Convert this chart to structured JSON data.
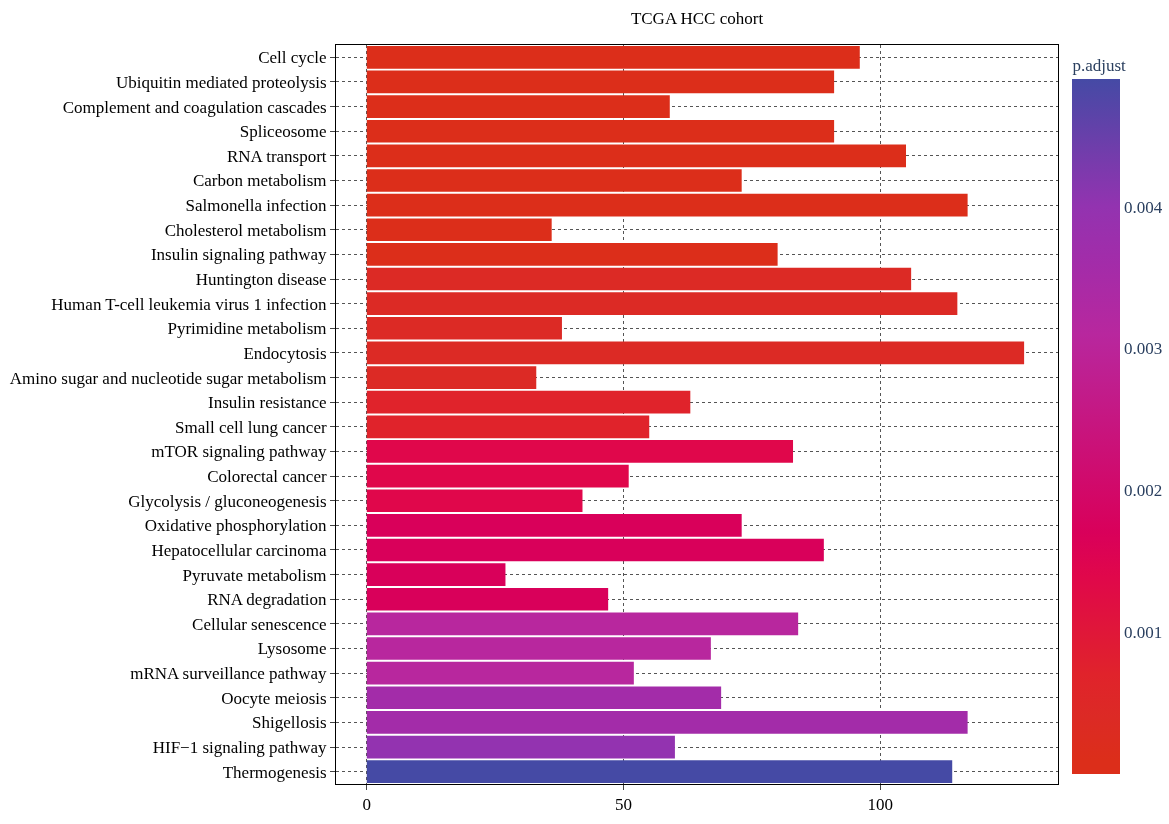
{
  "chart_data": {
    "type": "bar",
    "orientation": "horizontal",
    "title": "TCGA HCC cohort",
    "clabel": "p.adjust",
    "categories": [
      "Cell cycle",
      "Ubiquitin mediated proteolysis",
      "Complement and coagulation cascades",
      "Spliceosome",
      "RNA transport",
      "Carbon metabolism",
      "Salmonella infection",
      "Cholesterol metabolism",
      "Insulin signaling pathway",
      "Huntington disease",
      "Human T-cell leukemia virus 1 infection",
      "Pyrimidine metabolism",
      "Endocytosis",
      "Amino sugar and nucleotide sugar metabolism",
      "Insulin resistance",
      "Small cell lung cancer",
      "mTOR signaling pathway",
      "Colorectal cancer",
      "Glycolysis / gluconeogenesis",
      "Oxidative phosphorylation",
      "Hepatocellular carcinoma",
      "Pyruvate metabolism",
      "RNA degradation",
      "Cellular senescence",
      "Lysosome",
      "mRNA surveillance pathway",
      "Oocyte meiosis",
      "Shigellosis",
      "HIF−1 signaling pathway",
      "Thermogenesis"
    ],
    "values": [
      96,
      91,
      59,
      91,
      105,
      73,
      117,
      36,
      80,
      106,
      115,
      38,
      128,
      33,
      63,
      55,
      83,
      51,
      42,
      73,
      89,
      27,
      47,
      84,
      67,
      52,
      69,
      117,
      60,
      114
    ],
    "cvalues": [
      0.0001,
      0.0001,
      0.0001,
      0.0001,
      0.0001,
      0.0001,
      0.0001,
      0.0001,
      0.0001,
      0.0004,
      0.0004,
      0.0004,
      0.0004,
      0.0004,
      0.0007,
      0.0007,
      0.0014,
      0.0014,
      0.0014,
      0.0017,
      0.0017,
      0.0017,
      0.0017,
      0.0031,
      0.0031,
      0.0031,
      0.0036,
      0.0036,
      0.004,
      0.0049
    ],
    "colors": [
      "#dc2e1a",
      "#dc2e1a",
      "#dc2e1a",
      "#dc2e1a",
      "#dc2e1a",
      "#dc2e1a",
      "#dc2e1a",
      "#dc2e1a",
      "#dc2e1a",
      "#dc2a25",
      "#dc2a25",
      "#dc2a25",
      "#dc2a25",
      "#dc2a25",
      "#e0232b",
      "#e0232b",
      "#e0074b",
      "#e0074b",
      "#e0074b",
      "#d9005a",
      "#d9005a",
      "#d9005a",
      "#d9005a",
      "#b8279e",
      "#b8279e",
      "#b8279e",
      "#a32ca9",
      "#a32ca9",
      "#9333b0",
      "#454aa5"
    ],
    "clim": [
      0,
      0.0049
    ],
    "cticks": [
      0.001,
      0.002,
      0.003,
      0.004
    ],
    "xlim": [
      -6,
      134.6
    ],
    "xticks": [
      0,
      50,
      100
    ],
    "grid": true,
    "legend": false
  }
}
